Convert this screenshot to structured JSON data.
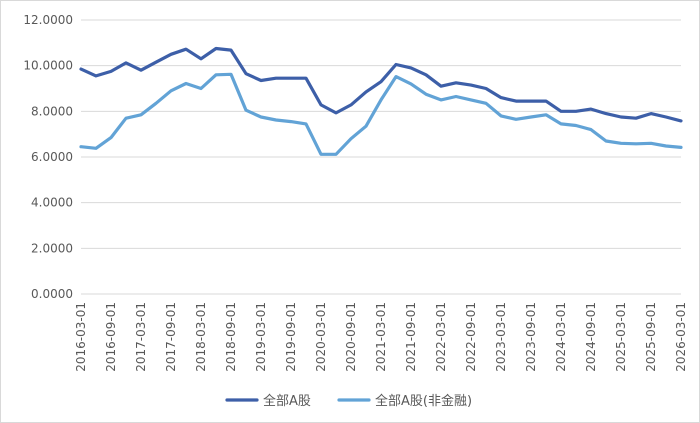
{
  "chart_data": {
    "type": "line",
    "y_axis": {
      "min": 0,
      "max": 12,
      "step": 2,
      "tick_labels": [
        "0.0000",
        "2.0000",
        "4.0000",
        "6.0000",
        "8.0000",
        "10.0000",
        "12.0000"
      ]
    },
    "grid": "horizontal",
    "legend_position": "bottom",
    "x": [
      "2016-03-01",
      "2016-06-01",
      "2016-09-01",
      "2016-12-01",
      "2017-03-01",
      "2017-06-01",
      "2017-09-01",
      "2017-12-01",
      "2018-03-01",
      "2018-06-01",
      "2018-09-01",
      "2018-12-01",
      "2019-03-01",
      "2019-06-01",
      "2019-09-01",
      "2019-12-01",
      "2020-03-01",
      "2020-06-01",
      "2020-09-01",
      "2020-12-01",
      "2021-03-01",
      "2021-06-01",
      "2021-09-01",
      "2021-12-01",
      "2022-03-01",
      "2022-06-01",
      "2022-09-01",
      "2022-12-01",
      "2023-03-01",
      "2023-06-01",
      "2023-09-01",
      "2023-12-01",
      "2024-03-01",
      "2024-06-01",
      "2024-09-01",
      "2024-12-01",
      "2025-03-01",
      "2025-06-01",
      "2025-09-01",
      "2025-12-01",
      "2026-03-01"
    ],
    "x_tick_labels": [
      "2016-03-01",
      "2016-09-01",
      "2017-03-01",
      "2017-09-01",
      "2018-03-01",
      "2018-09-01",
      "2019-03-01",
      "2019-09-01",
      "2020-03-01",
      "2020-09-01",
      "2021-03-01",
      "2021-09-01",
      "2022-03-01",
      "2022-09-01",
      "2023-03-01",
      "2023-09-01",
      "2024-03-01",
      "2024-09-01",
      "2025-03-01",
      "2025-09-01",
      "2026-03-01"
    ],
    "series": [
      {
        "name": "全部A股",
        "color": "#3d5fa8",
        "values": [
          9.85,
          9.55,
          9.75,
          10.12,
          9.8,
          10.15,
          10.5,
          10.72,
          10.3,
          10.75,
          10.68,
          9.65,
          9.35,
          9.45,
          9.45,
          9.45,
          8.28,
          7.93,
          8.28,
          8.85,
          9.3,
          10.05,
          9.9,
          9.6,
          9.1,
          9.25,
          9.15,
          9.0,
          8.6,
          8.45,
          8.45,
          8.45,
          8.0,
          8.0,
          8.1,
          7.9,
          7.75,
          7.7,
          7.9,
          7.75,
          7.58
        ]
      },
      {
        "name": "全部A股(非金融)",
        "color": "#62a3d6",
        "values": [
          6.45,
          6.38,
          6.85,
          7.7,
          7.85,
          8.35,
          8.9,
          9.22,
          9.0,
          9.6,
          9.62,
          8.05,
          7.75,
          7.62,
          7.55,
          7.45,
          6.12,
          6.12,
          6.8,
          7.35,
          8.5,
          9.52,
          9.2,
          8.75,
          8.5,
          8.65,
          8.5,
          8.35,
          7.8,
          7.65,
          7.75,
          7.85,
          7.45,
          7.38,
          7.2,
          6.7,
          6.6,
          6.58,
          6.6,
          6.48,
          6.42
        ]
      }
    ]
  }
}
